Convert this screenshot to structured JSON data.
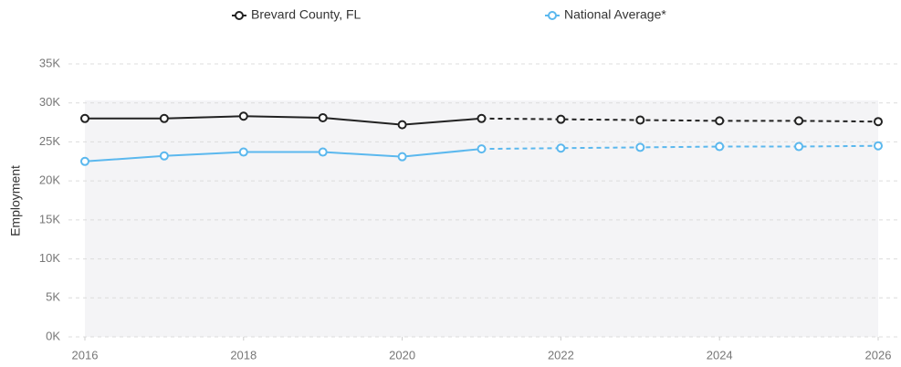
{
  "chart_data": {
    "type": "line",
    "y_axis_label": "Employment",
    "x": [
      2016,
      2017,
      2018,
      2019,
      2020,
      2021,
      2022,
      2023,
      2024,
      2025,
      2026
    ],
    "xlim": [
      2016,
      2026
    ],
    "xticks": [
      2016,
      2018,
      2020,
      2022,
      2024,
      2026
    ],
    "ylim": [
      0,
      35000
    ],
    "yticks": [
      {
        "value": 0,
        "label": "0K"
      },
      {
        "value": 5000,
        "label": "5K"
      },
      {
        "value": 10000,
        "label": "10K"
      },
      {
        "value": 15000,
        "label": "15K"
      },
      {
        "value": 20000,
        "label": "20K"
      },
      {
        "value": 25000,
        "label": "25K"
      },
      {
        "value": 30000,
        "label": "30K"
      },
      {
        "value": 35000,
        "label": "35K"
      }
    ],
    "grid": true,
    "legend": "top",
    "dashed_from": 2021,
    "series": [
      {
        "name": "Brevard County, FL",
        "color": "#222222",
        "values": [
          28000,
          28000,
          28300,
          28100,
          27200,
          28000,
          27900,
          27800,
          27700,
          27700,
          27600
        ]
      },
      {
        "name": "National Average*",
        "color": "#5bb8ee",
        "values": [
          22500,
          23200,
          23700,
          23700,
          23100,
          24100,
          24200,
          24300,
          24400,
          24400,
          24500
        ]
      }
    ]
  }
}
